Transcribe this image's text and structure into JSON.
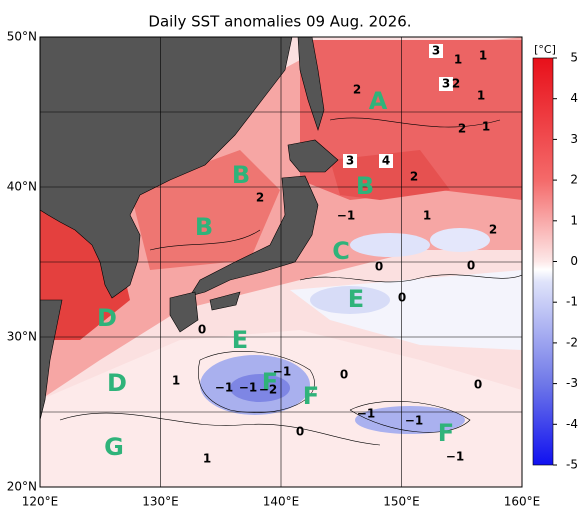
{
  "header": {
    "title": "Daily SST anomalies 09 Aug. 2026."
  },
  "map": {
    "lon_range": [
      120,
      160
    ],
    "lat_range": [
      20,
      50
    ],
    "x_axis": [
      {
        "value": 120,
        "label": "120°E"
      },
      {
        "value": 130,
        "label": "130°E"
      },
      {
        "value": 140,
        "label": "140°E"
      },
      {
        "value": 150,
        "label": "150°E"
      },
      {
        "value": 160,
        "label": "160°E"
      }
    ],
    "y_axis": [
      {
        "value": 20,
        "label": "20°N"
      },
      {
        "value": 30,
        "label": "30°N"
      },
      {
        "value": 40,
        "label": "40°N"
      },
      {
        "value": 50,
        "label": "50°N"
      }
    ],
    "region_labels": [
      "A",
      "B",
      "B",
      "B",
      "C",
      "E",
      "E",
      "D",
      "D",
      "F",
      "F",
      "F",
      "G"
    ],
    "contour_labels": [
      "3",
      "1",
      "1",
      "3",
      "2",
      "1",
      "2",
      "2",
      "1",
      "3",
      "4",
      "2",
      "2",
      "−1",
      "1",
      "2",
      "0",
      "0",
      "0",
      "0",
      "1",
      "−1",
      "−1",
      "−2",
      "−1",
      "0",
      "0",
      "−1",
      "−1",
      "0",
      "−1",
      "1"
    ]
  },
  "colorbar": {
    "label": "[°C]",
    "range": [
      -5,
      5
    ],
    "ticks": [
      5,
      4,
      3,
      2,
      1,
      0,
      -1,
      -2,
      -3,
      -4,
      -5
    ]
  }
}
